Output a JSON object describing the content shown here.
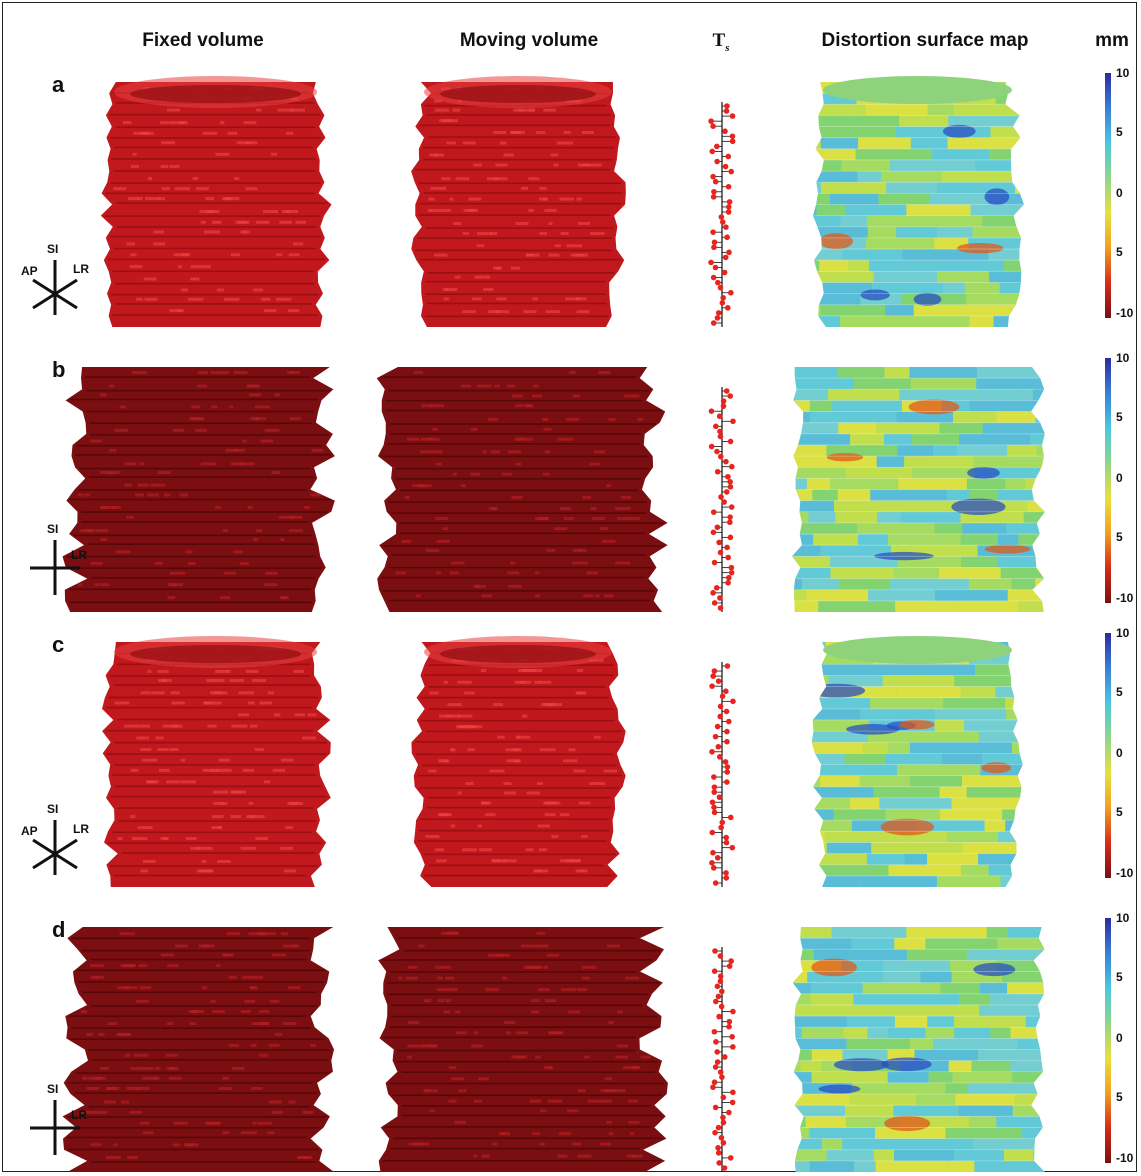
{
  "headers": {
    "fixed": "Fixed volume",
    "moving": "Moving volume",
    "ts_main": "T",
    "ts_sub": "s",
    "map": "Distortion surface map",
    "unit": "mm"
  },
  "colorbar": {
    "ticks": [
      "10",
      "5",
      "0",
      "5",
      "-10"
    ],
    "colors": [
      "#2b2ba0",
      "#3a7fd5",
      "#48c8e0",
      "#8fd68a",
      "#e8e040",
      "#f0a020",
      "#d62a1a",
      "#7a0f0f"
    ]
  },
  "rows": [
    {
      "label": "a",
      "view": "oblique",
      "axes": [
        "SI",
        "AP",
        "LR"
      ],
      "fill": "#c0181c",
      "highlight": "#e84040"
    },
    {
      "label": "b",
      "view": "coronal",
      "axes": [
        "SI",
        "LR"
      ],
      "fill": "#7a0e10",
      "highlight": "#b02024"
    },
    {
      "label": "c",
      "view": "oblique",
      "axes": [
        "SI",
        "AP",
        "LR"
      ],
      "fill": "#c0181c",
      "highlight": "#e84040"
    },
    {
      "label": "d",
      "view": "coronal",
      "axes": [
        "SI",
        "LR"
      ],
      "fill": "#7a0e10",
      "highlight": "#b02024"
    }
  ],
  "colors": {
    "stem_dot": "#e8241f",
    "stem_line": "#111111"
  }
}
